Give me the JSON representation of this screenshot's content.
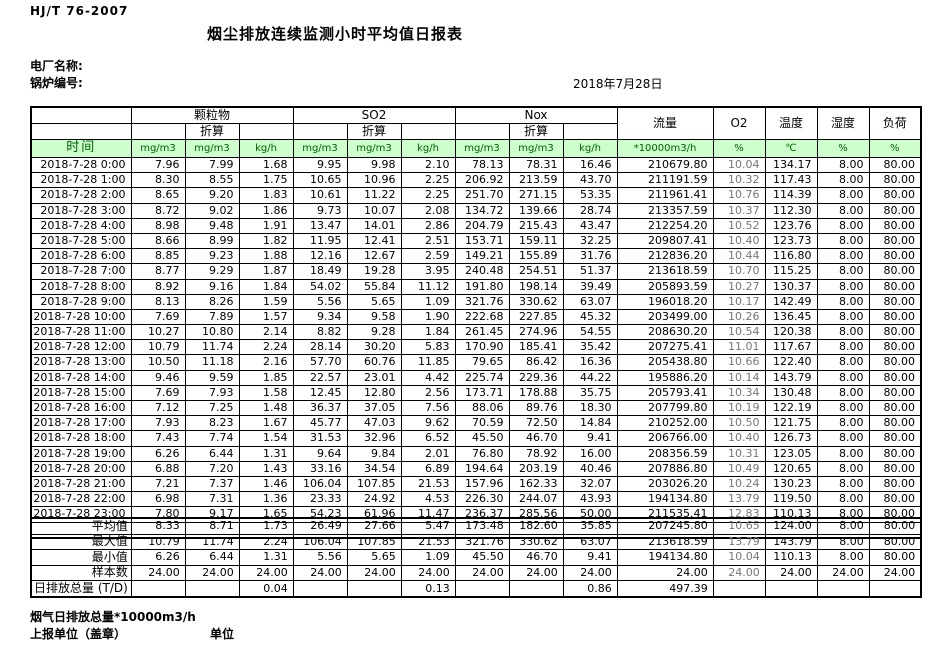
{
  "page": {
    "standard_code": "HJ/T  76-2007",
    "title": "烟尘排放连续监测小时平均值日报表",
    "plant_name_label": "电厂名称:",
    "boiler_no_label": "锅炉编号:",
    "date": "2018年7月28日"
  },
  "table": {
    "time_header": "时间",
    "groups": [
      {
        "label": "颗粒物",
        "converted_label": "折算",
        "sub": [
          "mg/m3",
          "mg/m3",
          "kg/h"
        ]
      },
      {
        "label": "SO2",
        "converted_label": "折算",
        "sub": [
          "mg/m3",
          "mg/m3",
          "kg/h"
        ]
      },
      {
        "label": "Nox",
        "converted_label": "折算",
        "sub": [
          "mg/m3",
          "mg/m3",
          "kg/h"
        ]
      }
    ],
    "single_cols": [
      {
        "label": "流量",
        "unit": "*10000m3/h"
      },
      {
        "label": "O2",
        "unit": "%"
      },
      {
        "label": "温度",
        "unit": "℃"
      },
      {
        "label": "湿度",
        "unit": "%"
      },
      {
        "label": "负荷",
        "unit": "%"
      }
    ],
    "rows": [
      {
        "time": "2018-7-28 0:00",
        "values": [
          "7.96",
          "7.99",
          "1.68",
          "9.95",
          "9.98",
          "2.10",
          "78.13",
          "78.31",
          "16.46",
          "210679.80",
          "10.04",
          "134.17",
          "8.00",
          "80.00"
        ]
      },
      {
        "time": "2018-7-28 1:00",
        "values": [
          "8.30",
          "8.55",
          "1.75",
          "10.65",
          "10.96",
          "2.25",
          "206.92",
          "213.59",
          "43.70",
          "211191.59",
          "10.32",
          "117.43",
          "8.00",
          "80.00"
        ]
      },
      {
        "time": "2018-7-28 2:00",
        "values": [
          "8.65",
          "9.20",
          "1.83",
          "10.61",
          "11.22",
          "2.25",
          "251.70",
          "271.15",
          "53.35",
          "211961.41",
          "10.76",
          "114.39",
          "8.00",
          "80.00"
        ]
      },
      {
        "time": "2018-7-28 3:00",
        "values": [
          "8.72",
          "9.02",
          "1.86",
          "9.73",
          "10.07",
          "2.08",
          "134.72",
          "139.66",
          "28.74",
          "213357.59",
          "10.37",
          "112.30",
          "8.00",
          "80.00"
        ]
      },
      {
        "time": "2018-7-28 4:00",
        "values": [
          "8.98",
          "9.48",
          "1.91",
          "13.47",
          "14.01",
          "2.86",
          "204.79",
          "215.43",
          "43.47",
          "212254.20",
          "10.52",
          "123.76",
          "8.00",
          "80.00"
        ]
      },
      {
        "time": "2018-7-28 5:00",
        "values": [
          "8.66",
          "8.99",
          "1.82",
          "11.95",
          "12.41",
          "2.51",
          "153.71",
          "159.11",
          "32.25",
          "209807.41",
          "10.40",
          "123.73",
          "8.00",
          "80.00"
        ]
      },
      {
        "time": "2018-7-28 6:00",
        "values": [
          "8.85",
          "9.23",
          "1.88",
          "12.16",
          "12.67",
          "2.59",
          "149.21",
          "155.89",
          "31.76",
          "212836.20",
          "10.44",
          "116.80",
          "8.00",
          "80.00"
        ]
      },
      {
        "time": "2018-7-28 7:00",
        "values": [
          "8.77",
          "9.29",
          "1.87",
          "18.49",
          "19.28",
          "3.95",
          "240.48",
          "254.51",
          "51.37",
          "213618.59",
          "10.70",
          "115.25",
          "8.00",
          "80.00"
        ]
      },
      {
        "time": "2018-7-28 8:00",
        "values": [
          "8.92",
          "9.16",
          "1.84",
          "54.02",
          "55.84",
          "11.12",
          "191.80",
          "198.14",
          "39.49",
          "205893.59",
          "10.27",
          "130.37",
          "8.00",
          "80.00"
        ]
      },
      {
        "time": "2018-7-28 9:00",
        "values": [
          "8.13",
          "8.26",
          "1.59",
          "5.56",
          "5.65",
          "1.09",
          "321.76",
          "330.62",
          "63.07",
          "196018.20",
          "10.17",
          "142.49",
          "8.00",
          "80.00"
        ]
      },
      {
        "time": "2018-7-28 10:00",
        "values": [
          "7.69",
          "7.89",
          "1.57",
          "9.34",
          "9.58",
          "1.90",
          "222.68",
          "227.85",
          "45.32",
          "203499.00",
          "10.26",
          "136.45",
          "8.00",
          "80.00"
        ]
      },
      {
        "time": "2018-7-28 11:00",
        "values": [
          "10.27",
          "10.80",
          "2.14",
          "8.82",
          "9.28",
          "1.84",
          "261.45",
          "274.96",
          "54.55",
          "208630.20",
          "10.54",
          "120.38",
          "8.00",
          "80.00"
        ]
      },
      {
        "time": "2018-7-28 12:00",
        "values": [
          "10.79",
          "11.74",
          "2.24",
          "28.14",
          "30.20",
          "5.83",
          "170.90",
          "185.41",
          "35.42",
          "207275.41",
          "11.01",
          "117.67",
          "8.00",
          "80.00"
        ]
      },
      {
        "time": "2018-7-28 13:00",
        "values": [
          "10.50",
          "11.18",
          "2.16",
          "57.70",
          "60.76",
          "11.85",
          "79.65",
          "86.42",
          "16.36",
          "205438.80",
          "10.66",
          "122.40",
          "8.00",
          "80.00"
        ]
      },
      {
        "time": "2018-7-28 14:00",
        "values": [
          "9.46",
          "9.59",
          "1.85",
          "22.57",
          "23.01",
          "4.42",
          "225.74",
          "229.36",
          "44.22",
          "195886.20",
          "10.14",
          "143.79",
          "8.00",
          "80.00"
        ]
      },
      {
        "time": "2018-7-28 15:00",
        "values": [
          "7.69",
          "7.93",
          "1.58",
          "12.45",
          "12.80",
          "2.56",
          "173.71",
          "178.88",
          "35.75",
          "205793.41",
          "10.34",
          "130.48",
          "8.00",
          "80.00"
        ]
      },
      {
        "time": "2018-7-28 16:00",
        "values": [
          "7.12",
          "7.25",
          "1.48",
          "36.37",
          "37.05",
          "7.56",
          "88.06",
          "89.76",
          "18.30",
          "207799.80",
          "10.19",
          "122.19",
          "8.00",
          "80.00"
        ]
      },
      {
        "time": "2018-7-28 17:00",
        "values": [
          "7.93",
          "8.23",
          "1.67",
          "45.77",
          "47.03",
          "9.62",
          "70.59",
          "72.50",
          "14.84",
          "210252.00",
          "10.50",
          "121.75",
          "8.00",
          "80.00"
        ]
      },
      {
        "time": "2018-7-28 18:00",
        "values": [
          "7.43",
          "7.74",
          "1.54",
          "31.53",
          "32.96",
          "6.52",
          "45.50",
          "46.70",
          "9.41",
          "206766.00",
          "10.40",
          "126.73",
          "8.00",
          "80.00"
        ]
      },
      {
        "time": "2018-7-28 19:00",
        "values": [
          "6.26",
          "6.44",
          "1.31",
          "9.64",
          "9.84",
          "2.01",
          "76.80",
          "78.92",
          "16.00",
          "208356.59",
          "10.31",
          "123.05",
          "8.00",
          "80.00"
        ]
      },
      {
        "time": "2018-7-28 20:00",
        "values": [
          "6.88",
          "7.20",
          "1.43",
          "33.16",
          "34.54",
          "6.89",
          "194.64",
          "203.19",
          "40.46",
          "207886.80",
          "10.49",
          "120.65",
          "8.00",
          "80.00"
        ]
      },
      {
        "time": "2018-7-28 21:00",
        "values": [
          "7.21",
          "7.37",
          "1.46",
          "106.04",
          "107.85",
          "21.53",
          "157.96",
          "162.33",
          "32.07",
          "203026.20",
          "10.24",
          "130.23",
          "8.00",
          "80.00"
        ]
      },
      {
        "time": "2018-7-28 22:00",
        "values": [
          "6.98",
          "7.31",
          "1.36",
          "23.33",
          "24.92",
          "4.53",
          "226.30",
          "244.07",
          "43.93",
          "194134.80",
          "13.79",
          "119.50",
          "8.00",
          "80.00"
        ]
      },
      {
        "time": "2018-7-28 23:00",
        "values": [
          "7.80",
          "9.17",
          "1.65",
          "54.23",
          "61.96",
          "11.47",
          "236.37",
          "285.56",
          "50.00",
          "211535.41",
          "12.83",
          "110.13",
          "8.00",
          "80.00"
        ]
      }
    ],
    "summary": [
      {
        "label": "平均值",
        "values": [
          "8.33",
          "8.71",
          "1.73",
          "26.49",
          "27.66",
          "5.47",
          "173.48",
          "182.60",
          "35.85",
          "207245.80",
          "10.65",
          "124.00",
          "8.00",
          "80.00"
        ]
      },
      {
        "label": "最大值",
        "values": [
          "10.79",
          "11.74",
          "2.24",
          "106.04",
          "107.85",
          "21.53",
          "321.76",
          "330.62",
          "63.07",
          "213618.59",
          "13.79",
          "143.79",
          "8.00",
          "80.00"
        ]
      },
      {
        "label": "最小值",
        "values": [
          "6.26",
          "6.44",
          "1.31",
          "5.56",
          "5.65",
          "1.09",
          "45.50",
          "46.70",
          "9.41",
          "194134.80",
          "10.04",
          "110.13",
          "8.00",
          "80.00"
        ]
      },
      {
        "label": "样本数",
        "values": [
          "24.00",
          "24.00",
          "24.00",
          "24.00",
          "24.00",
          "24.00",
          "24.00",
          "24.00",
          "24.00",
          "24.00",
          "24.00",
          "24.00",
          "24.00",
          "24.00"
        ]
      },
      {
        "label": "日排放总量 (T/D)",
        "values": [
          "",
          "",
          "0.04",
          "",
          "",
          "0.13",
          "",
          "",
          "0.86",
          "497.39",
          "",
          "",
          "",
          ""
        ]
      }
    ]
  },
  "footer": {
    "flow_total_note": "烟气日排放总量*10000m3/h",
    "report_unit_label": "上报单位（盖章）",
    "unit_label": "单位"
  },
  "colors": {
    "header_green_bg": "#ccffcc",
    "header_green_text": "#006400",
    "o2_value_text": "#767676",
    "border": "#000000"
  }
}
